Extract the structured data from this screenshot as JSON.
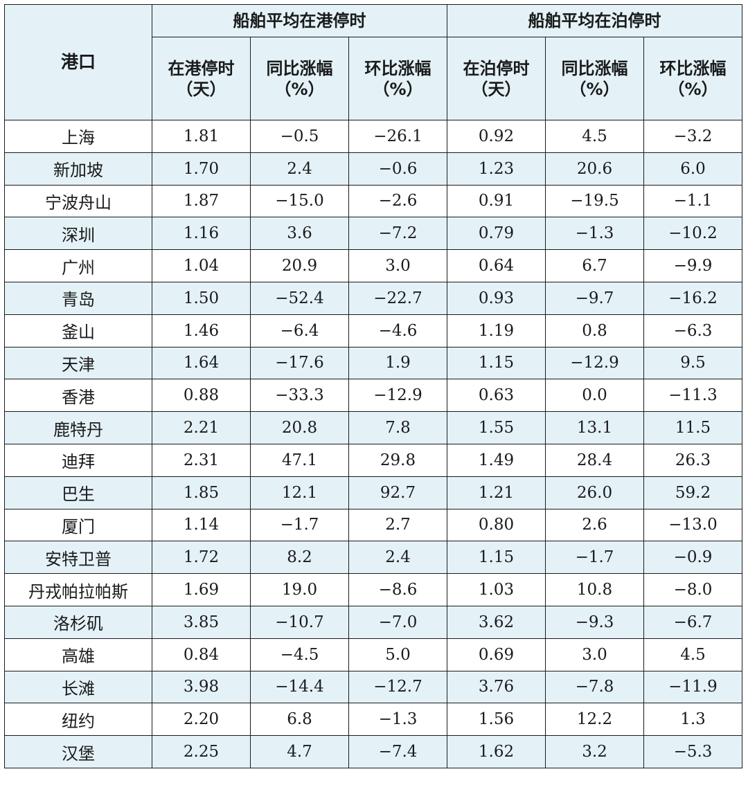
{
  "header": {
    "port": "港口",
    "group_port": "船舶平均在港停时",
    "group_berth": "船舶平均在泊停时",
    "subheaders": [
      {
        "line1": "在港停时",
        "line2": "（天）"
      },
      {
        "line1": "同比涨幅",
        "line2": "（%）"
      },
      {
        "line1": "环比涨幅",
        "line2": "（%）"
      },
      {
        "line1": "在泊停时",
        "line2": "（天）"
      },
      {
        "line1": "同比涨幅",
        "line2": "（%）"
      },
      {
        "line1": "环比涨幅",
        "line2": "（%）"
      }
    ]
  },
  "rows": [
    {
      "port": "上海",
      "values": [
        "1.81",
        "−0.5",
        "−26.1",
        "0.92",
        "4.5",
        "−3.2"
      ]
    },
    {
      "port": "新加坡",
      "values": [
        "1.70",
        "2.4",
        "−0.6",
        "1.23",
        "20.6",
        "6.0"
      ]
    },
    {
      "port": "宁波舟山",
      "values": [
        "1.87",
        "−15.0",
        "−2.6",
        "0.91",
        "−19.5",
        "−1.1"
      ]
    },
    {
      "port": "深圳",
      "values": [
        "1.16",
        "3.6",
        "−7.2",
        "0.79",
        "−1.3",
        "−10.2"
      ]
    },
    {
      "port": "广州",
      "values": [
        "1.04",
        "20.9",
        "3.0",
        "0.64",
        "6.7",
        "−9.9"
      ]
    },
    {
      "port": "青岛",
      "values": [
        "1.50",
        "−52.4",
        "−22.7",
        "0.93",
        "−9.7",
        "−16.2"
      ]
    },
    {
      "port": "釜山",
      "values": [
        "1.46",
        "−6.4",
        "−4.6",
        "1.19",
        "0.8",
        "−6.3"
      ]
    },
    {
      "port": "天津",
      "values": [
        "1.64",
        "−17.6",
        "1.9",
        "1.15",
        "−12.9",
        "9.5"
      ]
    },
    {
      "port": "香港",
      "values": [
        "0.88",
        "−33.3",
        "−12.9",
        "0.63",
        "0.0",
        "−11.3"
      ]
    },
    {
      "port": "鹿特丹",
      "values": [
        "2.21",
        "20.8",
        "7.8",
        "1.55",
        "13.1",
        "11.5"
      ]
    },
    {
      "port": "迪拜",
      "values": [
        "2.31",
        "47.1",
        "29.8",
        "1.49",
        "28.4",
        "26.3"
      ]
    },
    {
      "port": "巴生",
      "values": [
        "1.85",
        "12.1",
        "92.7",
        "1.21",
        "26.0",
        "59.2"
      ]
    },
    {
      "port": "厦门",
      "values": [
        "1.14",
        "−1.7",
        "2.7",
        "0.80",
        "2.6",
        "−13.0"
      ]
    },
    {
      "port": "安特卫普",
      "values": [
        "1.72",
        "8.2",
        "2.4",
        "1.15",
        "−1.7",
        "−0.9"
      ]
    },
    {
      "port": "丹戎帕拉帕斯",
      "values": [
        "1.69",
        "19.0",
        "−8.6",
        "1.03",
        "10.8",
        "−8.0"
      ]
    },
    {
      "port": "洛杉矶",
      "values": [
        "3.85",
        "−10.7",
        "−7.0",
        "3.62",
        "−9.3",
        "−6.7"
      ]
    },
    {
      "port": "高雄",
      "values": [
        "0.84",
        "−4.5",
        "5.0",
        "0.69",
        "3.0",
        "4.5"
      ]
    },
    {
      "port": "长滩",
      "values": [
        "3.98",
        "−14.4",
        "−12.7",
        "3.76",
        "−7.8",
        "−11.9"
      ]
    },
    {
      "port": "纽约",
      "values": [
        "2.20",
        "6.8",
        "−1.3",
        "1.56",
        "12.2",
        "1.3"
      ]
    },
    {
      "port": "汉堡",
      "values": [
        "2.25",
        "4.7",
        "−7.4",
        "1.62",
        "3.2",
        "−5.3"
      ]
    }
  ],
  "colors": {
    "header_bg": "#e4f2f8",
    "stripe_bg": "#e4f2f8",
    "border": "#1a1a1a"
  }
}
